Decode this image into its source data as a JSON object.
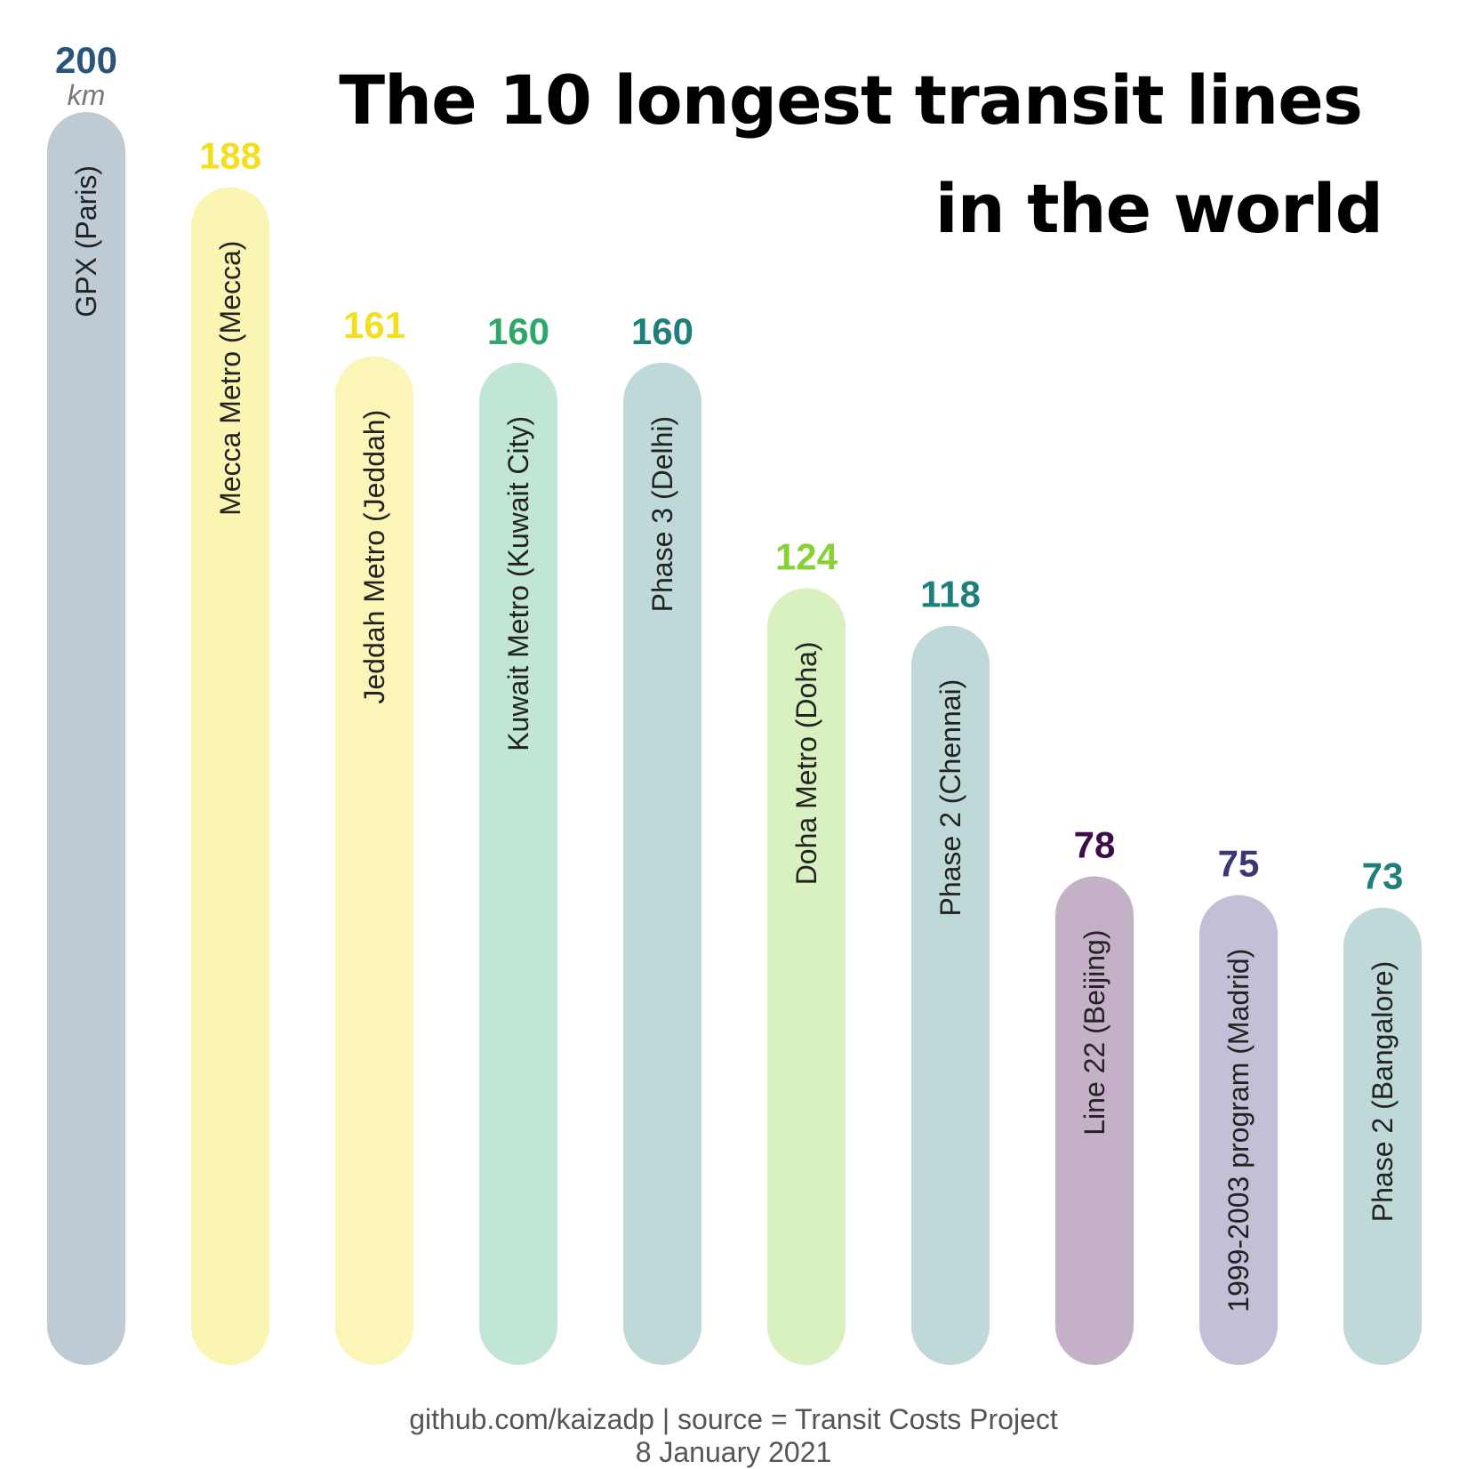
{
  "title": {
    "line1": "The 10 longest transit lines",
    "line2": "in the world"
  },
  "footer": {
    "credit": "github.com/kaizadp | source = Transit Costs Project",
    "date": "8 January 2021"
  },
  "chart_data": {
    "type": "bar",
    "unit_label": "km",
    "ylim": [
      0,
      200
    ],
    "grid": false,
    "categories": [
      "GPX (Paris)",
      "Mecca Metro (Mecca)",
      "Jeddah Metro (Jeddah)",
      "Kuwait Metro (Kuwait City)",
      "Phase 3 (Delhi)",
      "Doha Metro (Doha)",
      "Phase 2 (Chennai)",
      "Line 22 (Beijing)",
      "1999-2003 program (Madrid)",
      "Phase 2 (Bangalore)"
    ],
    "values": [
      200,
      188,
      161,
      160,
      160,
      124,
      118,
      78,
      75,
      73
    ],
    "value_colors": [
      "#2a5478",
      "#f3df1e",
      "#f3df1e",
      "#2ea86a",
      "#1f7f7a",
      "#86d136",
      "#1f7f7a",
      "#3d0c4a",
      "#3b3873",
      "#1f7f7a"
    ],
    "bar_colors": [
      "#becbd5",
      "#fbf5b4",
      "#fbf5b8",
      "#c2e6d4",
      "#bfd8d8",
      "#d9f0c1",
      "#bfd8d8",
      "#c4b1c7",
      "#c3bfd6",
      "#bfd8d8"
    ]
  }
}
